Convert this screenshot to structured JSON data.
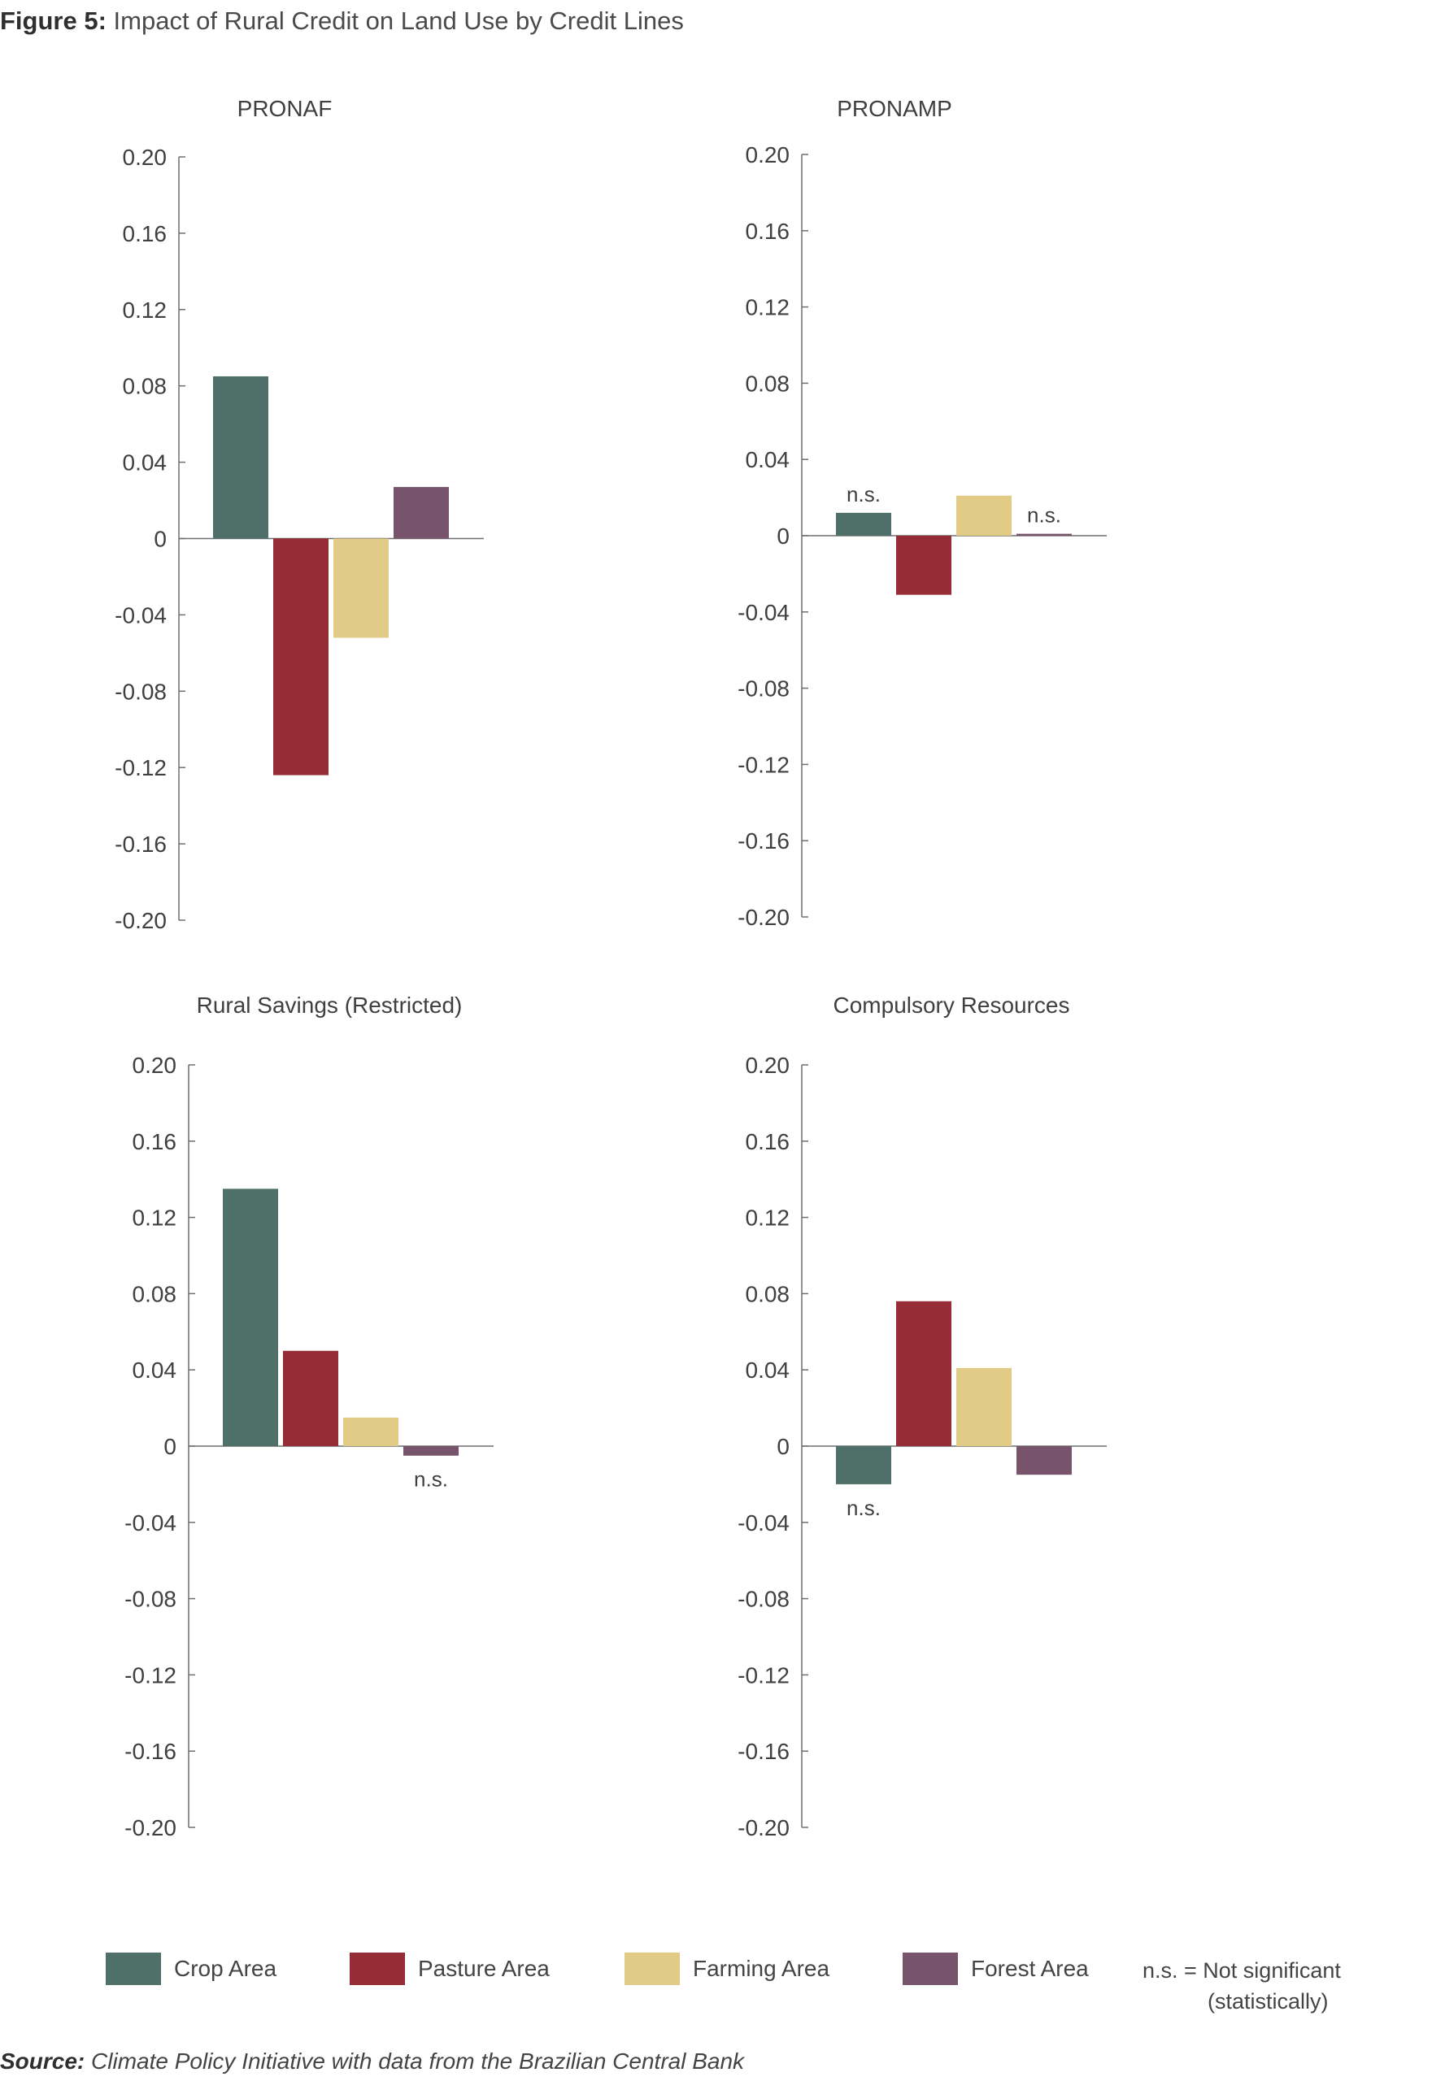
{
  "title_lead": "Figure 5:",
  "title_rest": "Impact of Rural Credit on Land Use by Credit Lines",
  "colors": {
    "crop": "#4e7068",
    "pasture": "#952c36",
    "farming": "#e2cb86",
    "forest": "#77536c",
    "axis": "#6f6f6f",
    "text": "#3f3f3f"
  },
  "legend": [
    {
      "label": "Crop Area",
      "color_key": "crop"
    },
    {
      "label": "Pasture Area",
      "color_key": "pasture"
    },
    {
      "label": "Farming Area",
      "color_key": "farming"
    },
    {
      "label": "Forest Area",
      "color_key": "forest"
    }
  ],
  "note": {
    "line1": "n.s. = Not significant",
    "line2": "(statistically)"
  },
  "source_lead": "Source:",
  "source_rest": "Climate Policy Initiative with data from the Brazilian Central Bank",
  "chart_data": [
    {
      "type": "bar",
      "title": "PRONAF",
      "categories": [
        "Crop Area",
        "Pasture Area",
        "Farming Area",
        "Forest Area"
      ],
      "values": [
        0.085,
        -0.124,
        -0.052,
        0.027
      ],
      "annotations": [
        "",
        "",
        "",
        ""
      ],
      "ylim": [
        -0.2,
        0.2
      ],
      "yticks": [
        "0.20",
        "0.16",
        "0.12",
        "0.08",
        "0.04",
        "0",
        "-0.04",
        "-0.08",
        "-0.12",
        "-0.16",
        "-0.20"
      ]
    },
    {
      "type": "bar",
      "title": "PRONAMP",
      "categories": [
        "Crop Area",
        "Pasture Area",
        "Farming Area",
        "Forest Area"
      ],
      "values": [
        0.012,
        -0.031,
        0.021,
        0.001
      ],
      "annotations": [
        "n.s.",
        "",
        "",
        "n.s."
      ],
      "ylim": [
        -0.2,
        0.2
      ],
      "yticks": [
        "0.20",
        "0.16",
        "0.12",
        "0.08",
        "0.04",
        "0",
        "-0.04",
        "-0.08",
        "-0.12",
        "-0.16",
        "-0.20"
      ]
    },
    {
      "type": "bar",
      "title": "Rural Savings (Restricted)",
      "categories": [
        "Crop Area",
        "Pasture Area",
        "Farming Area",
        "Forest Area"
      ],
      "values": [
        0.135,
        0.05,
        0.015,
        -0.005
      ],
      "annotations": [
        "",
        "",
        "",
        "n.s."
      ],
      "ylim": [
        -0.2,
        0.2
      ],
      "yticks": [
        "0.20",
        "0.16",
        "0.12",
        "0.08",
        "0.04",
        "0",
        "-0.04",
        "-0.08",
        "-0.12",
        "-0.16",
        "-0.20"
      ]
    },
    {
      "type": "bar",
      "title": "Compulsory Resources",
      "categories": [
        "Crop Area",
        "Pasture Area",
        "Farming Area",
        "Forest Area"
      ],
      "values": [
        -0.02,
        0.076,
        0.041,
        -0.015
      ],
      "annotations": [
        "n.s.",
        "",
        "",
        ""
      ],
      "ylim": [
        -0.2,
        0.2
      ],
      "yticks": [
        "0.20",
        "0.16",
        "0.12",
        "0.08",
        "0.04",
        "0",
        "-0.04",
        "-0.08",
        "-0.12",
        "-0.16",
        "-0.20"
      ]
    }
  ]
}
